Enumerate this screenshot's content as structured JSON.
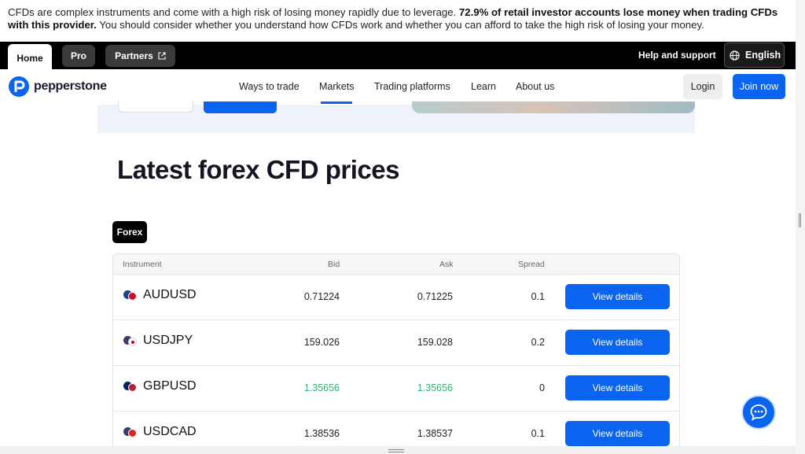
{
  "risk_warning": {
    "part1": "CFDs are complex instruments and come with a high risk of losing money rapidly due to leverage. ",
    "bold": "72.9% of retail investor accounts lose money when trading CFDs with this provider.",
    "part2": " You should consider whether you understand how CFDs work and whether you can afford to take the high risk of losing your money."
  },
  "topbar": {
    "tabs": [
      "Home",
      "Pro",
      "Partners"
    ],
    "help": "Help and support",
    "language": "English"
  },
  "nav": {
    "logo": "pepperstone",
    "links": [
      "Ways to trade",
      "Markets",
      "Trading platforms",
      "Learn",
      "About us"
    ],
    "login": "Login",
    "join": "Join now"
  },
  "page_title": "Latest forex CFD prices",
  "filter_chip": "Forex",
  "table": {
    "headers": [
      "Instrument",
      "Bid",
      "Ask",
      "Spread"
    ],
    "rows": [
      {
        "symbol": "AUDUSD",
        "bid": "0.71224",
        "ask": "0.71225",
        "spread": "0.1",
        "button": "View details",
        "flags": [
          "#1f3f8f",
          "#c8102e"
        ]
      },
      {
        "symbol": "USDJPY",
        "bid": "159.026",
        "ask": "159.028",
        "spread": "0.2",
        "button": "View details",
        "flags": [
          "#3c3b6e",
          "#ffffff"
        ]
      },
      {
        "symbol": "GBPUSD",
        "bid": "1.35656",
        "ask": "1.35656",
        "spread": "0",
        "button": "View details",
        "flags": [
          "#012169",
          "#b22234"
        ],
        "highlight": true
      },
      {
        "symbol": "USDCAD",
        "bid": "1.38536",
        "ask": "1.38537",
        "spread": "0.1",
        "button": "View details",
        "flags": [
          "#3c3b6e",
          "#d52b1e"
        ]
      }
    ]
  },
  "colors": {
    "accent": "#0a64f0",
    "price_up": "#2bb673"
  }
}
